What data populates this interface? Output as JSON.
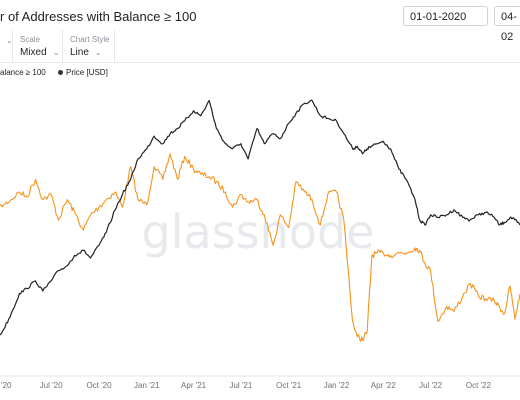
{
  "header": {
    "title_text": "r of Addresses with Balance ≥ 100",
    "date_from": "01-01-2020",
    "date_to": "04-02"
  },
  "controls": [
    {
      "label": "",
      "value": "",
      "chevron": "⌄"
    },
    {
      "label": "Scale",
      "value": "Mixed",
      "chevron": "⌄"
    },
    {
      "label": "Chart Style",
      "value": "Line",
      "chevron": "⌄"
    }
  ],
  "legend": {
    "series_1": "alance ≥ 100",
    "series_2": "Price [USD]"
  },
  "watermark": "glassnode",
  "colors": {
    "addresses_line": "#f7931a",
    "price_line": "#222222",
    "watermark": "#e7e9ec"
  },
  "chart_data": {
    "type": "line",
    "x_tick_labels": [
      "r '20",
      "Jul '20",
      "Oct '20",
      "Jan '21",
      "Apr '21",
      "Jul '21",
      "Oct '21",
      "Jan '22",
      "Apr '22",
      "Jul '22",
      "Oct '22"
    ],
    "x_range": [
      "2020-03-15",
      "2022-12-20"
    ],
    "ylim": [
      0,
      100
    ],
    "grid": false,
    "series": [
      {
        "name": "alance ≥ 100",
        "color": "#f7931a",
        "x": [
          "2020-03-15",
          "2020-04-01",
          "2020-04-15",
          "2020-05-01",
          "2020-05-15",
          "2020-06-01",
          "2020-06-15",
          "2020-07-01",
          "2020-07-15",
          "2020-08-01",
          "2020-08-15",
          "2020-09-01",
          "2020-09-15",
          "2020-10-01",
          "2020-10-15",
          "2020-11-01",
          "2020-11-15",
          "2020-12-01",
          "2020-12-15",
          "2021-01-01",
          "2021-01-15",
          "2021-02-01",
          "2021-02-15",
          "2021-03-01",
          "2021-03-15",
          "2021-04-01",
          "2021-04-15",
          "2021-05-01",
          "2021-05-15",
          "2021-06-01",
          "2021-06-15",
          "2021-07-01",
          "2021-07-15",
          "2021-08-01",
          "2021-08-15",
          "2021-09-01",
          "2021-09-15",
          "2021-10-01",
          "2021-10-15",
          "2021-11-01",
          "2021-11-15",
          "2021-12-01",
          "2021-12-15",
          "2022-01-01",
          "2022-01-15",
          "2022-02-01",
          "2022-02-10",
          "2022-02-20",
          "2022-03-01",
          "2022-03-10",
          "2022-03-20",
          "2022-04-01",
          "2022-04-15",
          "2022-05-01",
          "2022-05-15",
          "2022-06-01",
          "2022-06-10",
          "2022-06-20",
          "2022-07-01",
          "2022-07-15",
          "2022-08-01",
          "2022-08-15",
          "2022-09-01",
          "2022-09-15",
          "2022-10-01",
          "2022-10-15",
          "2022-11-01",
          "2022-11-10",
          "2022-11-20",
          "2022-12-01",
          "2022-12-10",
          "2022-12-20"
        ],
        "values": [
          56,
          58,
          60,
          63,
          61,
          68,
          60,
          62,
          52,
          60,
          55,
          48,
          54,
          57,
          60,
          63,
          57,
          73,
          60,
          58,
          73,
          68,
          78,
          68,
          77,
          72,
          70,
          69,
          67,
          63,
          57,
          62,
          59,
          60,
          54,
          42,
          54,
          49,
          67,
          63,
          60,
          50,
          62,
          63,
          52,
          12,
          6,
          5,
          8,
          38,
          39,
          39,
          38,
          39,
          39,
          41,
          40,
          35,
          32,
          12,
          18,
          16,
          22,
          27,
          22,
          21,
          20,
          18,
          15,
          26,
          13,
          23
        ]
      },
      {
        "name": "Price [USD]",
        "color": "#222222",
        "x": [
          "2020-03-15",
          "2020-04-01",
          "2020-04-15",
          "2020-05-01",
          "2020-05-15",
          "2020-06-01",
          "2020-06-15",
          "2020-07-01",
          "2020-07-15",
          "2020-08-01",
          "2020-08-15",
          "2020-09-01",
          "2020-09-15",
          "2020-10-01",
          "2020-10-15",
          "2020-11-01",
          "2020-11-15",
          "2020-12-01",
          "2020-12-15",
          "2021-01-01",
          "2021-01-15",
          "2021-02-01",
          "2021-02-15",
          "2021-03-01",
          "2021-03-15",
          "2021-04-01",
          "2021-04-15",
          "2021-05-01",
          "2021-05-15",
          "2021-06-01",
          "2021-06-15",
          "2021-07-01",
          "2021-07-15",
          "2021-08-01",
          "2021-08-15",
          "2021-09-01",
          "2021-09-15",
          "2021-10-01",
          "2021-10-15",
          "2021-11-01",
          "2021-11-15",
          "2021-12-01",
          "2021-12-15",
          "2022-01-01",
          "2022-01-15",
          "2022-02-01",
          "2022-02-10",
          "2022-02-20",
          "2022-03-01",
          "2022-03-10",
          "2022-03-20",
          "2022-04-01",
          "2022-04-15",
          "2022-05-01",
          "2022-05-15",
          "2022-06-01",
          "2022-06-10",
          "2022-06-20",
          "2022-07-01",
          "2022-07-15",
          "2022-08-01",
          "2022-08-15",
          "2022-09-01",
          "2022-09-15",
          "2022-10-01",
          "2022-10-15",
          "2022-11-01",
          "2022-11-10",
          "2022-11-20",
          "2022-12-01",
          "2022-12-10",
          "2022-12-20"
        ],
        "values": [
          4,
          9,
          15,
          23,
          25,
          28,
          24,
          28,
          32,
          34,
          38,
          40,
          37,
          42,
          47,
          56,
          62,
          68,
          76,
          80,
          85,
          82,
          86,
          88,
          91,
          95,
          93,
          99,
          88,
          82,
          80,
          82,
          76,
          88,
          82,
          86,
          84,
          90,
          94,
          98,
          99,
          93,
          92,
          91,
          86,
          80,
          81,
          78,
          80,
          81,
          82,
          83,
          80,
          72,
          68,
          60,
          52,
          50,
          54,
          53,
          54,
          56,
          53,
          52,
          54,
          55,
          53,
          50,
          51,
          53,
          52,
          50
        ]
      }
    ]
  }
}
